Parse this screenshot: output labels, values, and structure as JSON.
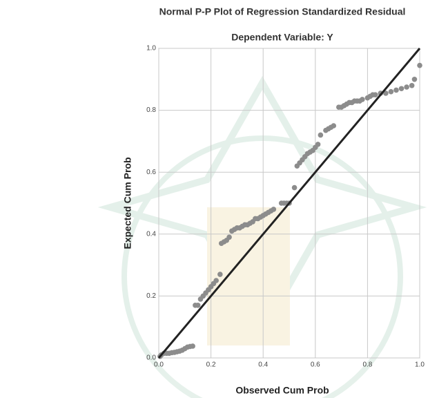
{
  "chart_data": {
    "type": "scatter",
    "title": "Normal P-P Plot of Regression Standardized Residual",
    "subtitle": "Dependent Variable: Y",
    "x_label": "Observed Cum Prob",
    "y_label": "Expected Cum Prob",
    "xlim": [
      0,
      1
    ],
    "ylim": [
      0,
      1
    ],
    "xticks": [
      {
        "value": 0,
        "label": "0.0"
      },
      0.2,
      0.4,
      0.6,
      0.8,
      {
        "value": 1,
        "label": "1.0"
      }
    ],
    "yticks": [
      {
        "value": 0,
        "label": "0.0"
      },
      0.2,
      0.4,
      0.6,
      0.8,
      {
        "value": 1,
        "label": "1.0"
      }
    ],
    "grid": true,
    "color": "#8c8c8c",
    "reference_line": {
      "x": [
        0,
        1
      ],
      "y": [
        0,
        1
      ],
      "color": "#222222"
    },
    "x": [
      0.005,
      0.01,
      0.02,
      0.03,
      0.04,
      0.05,
      0.06,
      0.07,
      0.08,
      0.09,
      0.1,
      0.11,
      0.12,
      0.13,
      0.14,
      0.15,
      0.16,
      0.17,
      0.18,
      0.19,
      0.2,
      0.21,
      0.22,
      0.235,
      0.24,
      0.25,
      0.26,
      0.27,
      0.28,
      0.29,
      0.3,
      0.31,
      0.32,
      0.33,
      0.34,
      0.35,
      0.36,
      0.37,
      0.38,
      0.39,
      0.4,
      0.41,
      0.42,
      0.43,
      0.44,
      0.47,
      0.48,
      0.49,
      0.5,
      0.52,
      0.53,
      0.54,
      0.55,
      0.56,
      0.57,
      0.58,
      0.59,
      0.6,
      0.61,
      0.62,
      0.64,
      0.65,
      0.66,
      0.67,
      0.69,
      0.7,
      0.71,
      0.72,
      0.73,
      0.74,
      0.75,
      0.76,
      0.77,
      0.78,
      0.8,
      0.81,
      0.82,
      0.83,
      0.85,
      0.87,
      0.89,
      0.91,
      0.93,
      0.95,
      0.97,
      0.98,
      1.0
    ],
    "y": [
      0.005,
      0.01,
      0.015,
      0.015,
      0.015,
      0.017,
      0.018,
      0.02,
      0.022,
      0.025,
      0.03,
      0.035,
      0.037,
      0.038,
      0.17,
      0.17,
      0.19,
      0.2,
      0.21,
      0.22,
      0.23,
      0.24,
      0.25,
      0.27,
      0.37,
      0.375,
      0.38,
      0.39,
      0.41,
      0.415,
      0.42,
      0.42,
      0.425,
      0.43,
      0.43,
      0.435,
      0.44,
      0.45,
      0.45,
      0.455,
      0.46,
      0.465,
      0.47,
      0.475,
      0.48,
      0.5,
      0.5,
      0.5,
      0.5,
      0.55,
      0.62,
      0.63,
      0.64,
      0.65,
      0.66,
      0.665,
      0.67,
      0.68,
      0.69,
      0.72,
      0.735,
      0.74,
      0.745,
      0.75,
      0.81,
      0.81,
      0.815,
      0.82,
      0.825,
      0.825,
      0.83,
      0.83,
      0.83,
      0.835,
      0.84,
      0.845,
      0.85,
      0.85,
      0.855,
      0.855,
      0.86,
      0.865,
      0.87,
      0.875,
      0.88,
      0.9,
      0.945
    ]
  }
}
